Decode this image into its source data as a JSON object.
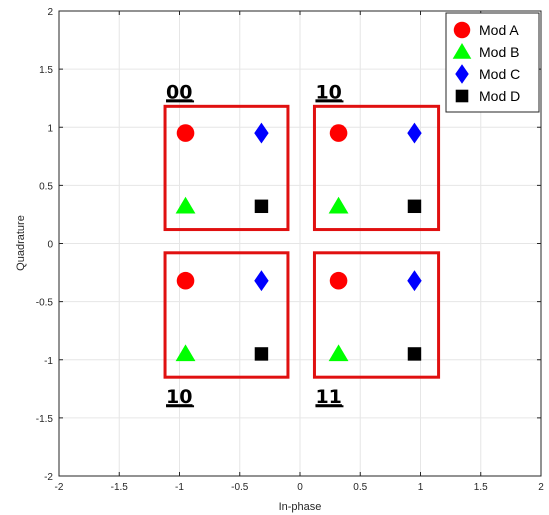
{
  "chart_data": {
    "type": "scatter",
    "xlabel": "In-phase",
    "ylabel": "Quadrature",
    "xlim": [
      -2,
      2
    ],
    "ylim": [
      -2,
      2
    ],
    "xticks": [
      "-2",
      "-1.5",
      "-1",
      "-0.5",
      "0",
      "0.5",
      "1",
      "1.5",
      "2"
    ],
    "yticks": [
      "2",
      "1.5",
      "1",
      "0.5",
      "0",
      "-0.5",
      "-1",
      "-1.5",
      "-2"
    ],
    "grid": true,
    "legend_position": "top-right",
    "series": [
      {
        "name": "Mod A",
        "marker": "circle",
        "color": "#ff0000",
        "points": [
          [
            -0.95,
            0.95
          ],
          [
            0.32,
            0.95
          ],
          [
            -0.95,
            -0.32
          ],
          [
            0.32,
            -0.32
          ]
        ]
      },
      {
        "name": "Mod B",
        "marker": "triangle",
        "color": "#00ff00",
        "points": [
          [
            -0.95,
            0.32
          ],
          [
            0.32,
            0.32
          ],
          [
            -0.95,
            -0.95
          ],
          [
            0.32,
            -0.95
          ]
        ]
      },
      {
        "name": "Mod C",
        "marker": "diamond",
        "color": "#0000ff",
        "points": [
          [
            -0.32,
            0.95
          ],
          [
            0.95,
            0.95
          ],
          [
            -0.32,
            -0.32
          ],
          [
            0.95,
            -0.32
          ]
        ]
      },
      {
        "name": "Mod D",
        "marker": "square",
        "color": "#000000",
        "points": [
          [
            -0.32,
            0.32
          ],
          [
            0.95,
            0.32
          ],
          [
            -0.32,
            -0.95
          ],
          [
            0.95,
            -0.95
          ]
        ]
      }
    ],
    "groups": [
      {
        "label": "00",
        "label_side": "top",
        "x_range": [
          -1.12,
          -0.1
        ],
        "y_range": [
          0.12,
          1.18
        ]
      },
      {
        "label": "10",
        "label_side": "top",
        "x_range": [
          0.12,
          1.15
        ],
        "y_range": [
          0.12,
          1.18
        ]
      },
      {
        "label": "10",
        "label_side": "bottom",
        "x_range": [
          -1.12,
          -0.1
        ],
        "y_range": [
          -1.15,
          -0.08
        ]
      },
      {
        "label": "11",
        "label_side": "bottom",
        "x_range": [
          0.12,
          1.15
        ],
        "y_range": [
          -1.15,
          -0.08
        ]
      }
    ],
    "group_box_color": "#e01010"
  }
}
